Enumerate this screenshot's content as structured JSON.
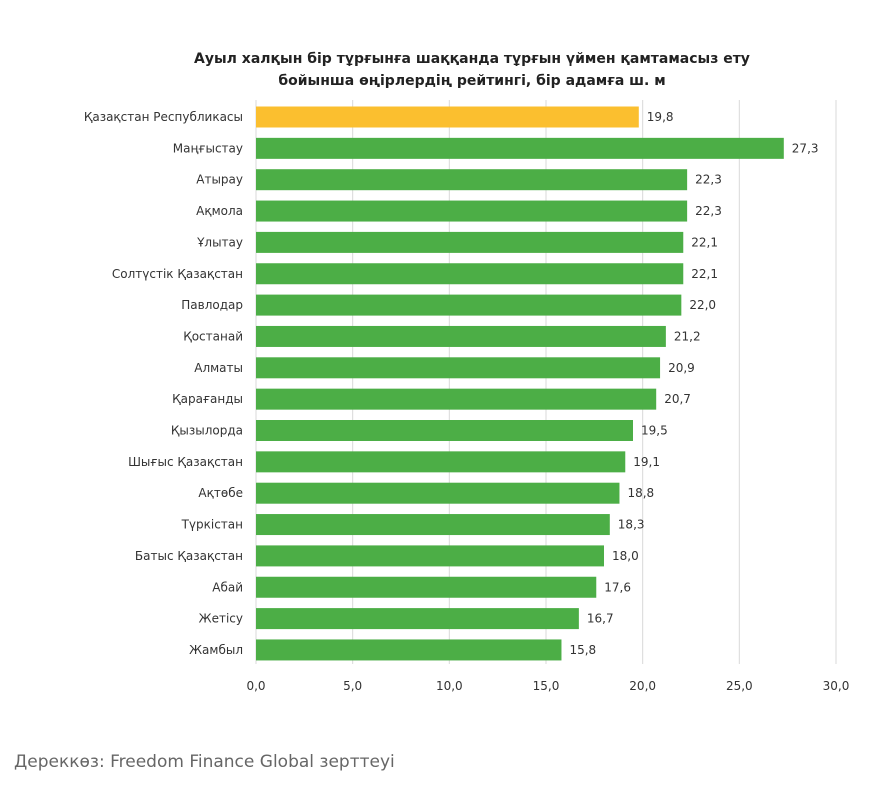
{
  "chart_data": {
    "type": "bar",
    "orientation": "horizontal",
    "title_lines": [
      "Ауыл халқын бір тұрғынға шаққанда тұрғын үймен қамтамасыз ету",
      "бойынша өңірлердің рейтингі, бір адамға ш. м"
    ],
    "categories": [
      "Қазақстан Республикасы",
      "Маңғыстау",
      "Атырау",
      "Ақмола",
      "Ұлытау",
      "Солтүстік Қазақстан",
      "Павлодар",
      "Қостанай",
      "Алматы",
      "Қарағанды",
      "Қызылорда",
      "Шығыс Қазақстан",
      "Ақтөбе",
      "Түркістан",
      "Батыс Қазақстан",
      "Абай",
      "Жетісу",
      "Жамбыл"
    ],
    "values": [
      19.8,
      27.3,
      22.3,
      22.3,
      22.1,
      22.1,
      22.0,
      21.2,
      20.9,
      20.7,
      19.5,
      19.1,
      18.8,
      18.3,
      18.0,
      17.6,
      16.7,
      15.8
    ],
    "value_labels": [
      "19,8",
      "27,3",
      "22,3",
      "22,3",
      "22,1",
      "22,1",
      "22,0",
      "21,2",
      "20,9",
      "20,7",
      "19,5",
      "19,1",
      "18,8",
      "18,3",
      "18,0",
      "17,6",
      "16,7",
      "15,8"
    ],
    "highlight_index": 0,
    "xlim": [
      0,
      30
    ],
    "x_ticks": [
      0,
      5,
      10,
      15,
      20,
      25,
      30
    ],
    "x_tick_labels": [
      "0,0",
      "5,0",
      "10,0",
      "15,0",
      "20,0",
      "25,0",
      "30,0"
    ],
    "grid": true,
    "legend": "none",
    "colors": {
      "bar": "#4cae46",
      "highlight": "#fbbf2f"
    }
  },
  "source": "Дереккөз: Freedom Finance Global зерттеуі"
}
